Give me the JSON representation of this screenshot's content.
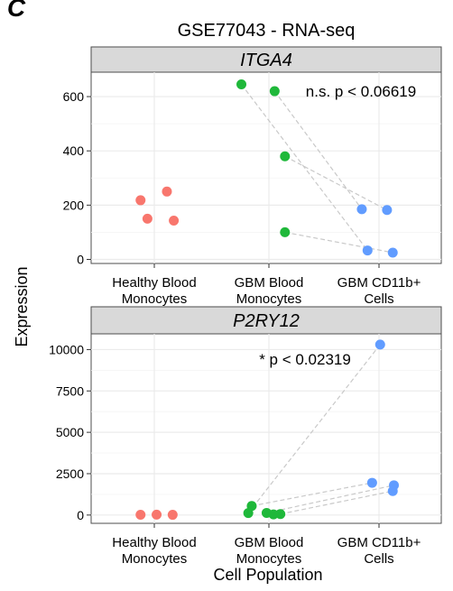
{
  "panel_letter": "C",
  "title": "GSE77043 - RNA-seq",
  "ylabel": "Expression",
  "xlabel": "Cell Population",
  "colors": {
    "healthy": "#f8766d",
    "gbm_blood": "#1fb83a",
    "cd11b": "#619cff",
    "strip_bg": "#d9d9d9",
    "grid": "#ebebeb",
    "pair_line": "#c9c9c9"
  },
  "chart_data": [
    {
      "type": "scatter",
      "facet": "ITGA4",
      "categories": [
        "Healthy Blood\nMonocytes",
        "GBM Blood\nMonocytes",
        "GBM CD11b+\nCells"
      ],
      "category_lines": [
        [
          "Healthy Blood",
          "Monocytes"
        ],
        [
          "GBM Blood",
          "Monocytes"
        ],
        [
          "GBM CD11b+",
          "Cells"
        ]
      ],
      "yticks": [
        0,
        200,
        400,
        600
      ],
      "ylim": [
        -15,
        690
      ],
      "annotation": "n.s. p < 0.06619",
      "series": [
        {
          "group": "Healthy Blood Monocytes",
          "color_key": "healthy",
          "points": [
            [
              -0.12,
              218
            ],
            [
              0.11,
              250
            ],
            [
              -0.06,
              150
            ],
            [
              0.17,
              143
            ]
          ]
        },
        {
          "group": "GBM Blood Monocytes",
          "color_key": "gbm_blood",
          "points": [
            [
              0.14,
              380
            ],
            [
              0.14,
              100
            ],
            [
              0.05,
              620
            ],
            [
              -0.24,
              645
            ]
          ]
        },
        {
          "group": "GBM CD11b+ Cells",
          "color_key": "cd11b",
          "points": [
            [
              -0.15,
              185
            ],
            [
              0.07,
              182
            ],
            [
              -0.1,
              33
            ],
            [
              0.12,
              25
            ]
          ]
        }
      ],
      "pairs": [
        [
          620,
          185
        ],
        [
          645,
          33
        ],
        [
          380,
          182
        ],
        [
          100,
          25
        ]
      ]
    },
    {
      "type": "scatter",
      "facet": "P2RY12",
      "categories": [
        "Healthy Blood\nMonocytes",
        "GBM Blood\nMonocytes",
        "GBM CD11b+\nCells"
      ],
      "category_lines": [
        [
          "Healthy Blood",
          "Monocytes"
        ],
        [
          "GBM Blood",
          "Monocytes"
        ],
        [
          "GBM CD11b+",
          "Cells"
        ]
      ],
      "yticks": [
        0,
        2500,
        5000,
        7500,
        10000
      ],
      "ytick_labels": [
        "0",
        "2500",
        "5000",
        "7500",
        "10000"
      ],
      "ylim": [
        -500,
        10950
      ],
      "annotation": "*  p < 0.02319",
      "series": [
        {
          "group": "Healthy Blood Monocytes",
          "color_key": "healthy",
          "points": [
            [
              -0.12,
              20
            ],
            [
              0.02,
              25
            ],
            [
              0.16,
              15
            ]
          ]
        },
        {
          "group": "GBM Blood Monocytes",
          "color_key": "gbm_blood",
          "points": [
            [
              -0.15,
              550
            ],
            [
              -0.18,
              120
            ],
            [
              -0.02,
              130
            ],
            [
              0.1,
              60
            ],
            [
              0.04,
              40
            ]
          ]
        },
        {
          "group": "GBM CD11b+ Cells",
          "color_key": "cd11b",
          "points": [
            [
              0.01,
              10300
            ],
            [
              -0.06,
              1950
            ],
            [
              0.13,
              1800
            ],
            [
              0.12,
              1450
            ]
          ]
        }
      ],
      "pairs": [
        [
          120,
          10300
        ],
        [
          550,
          1950
        ],
        [
          130,
          1800
        ],
        [
          60,
          1450
        ]
      ]
    }
  ]
}
